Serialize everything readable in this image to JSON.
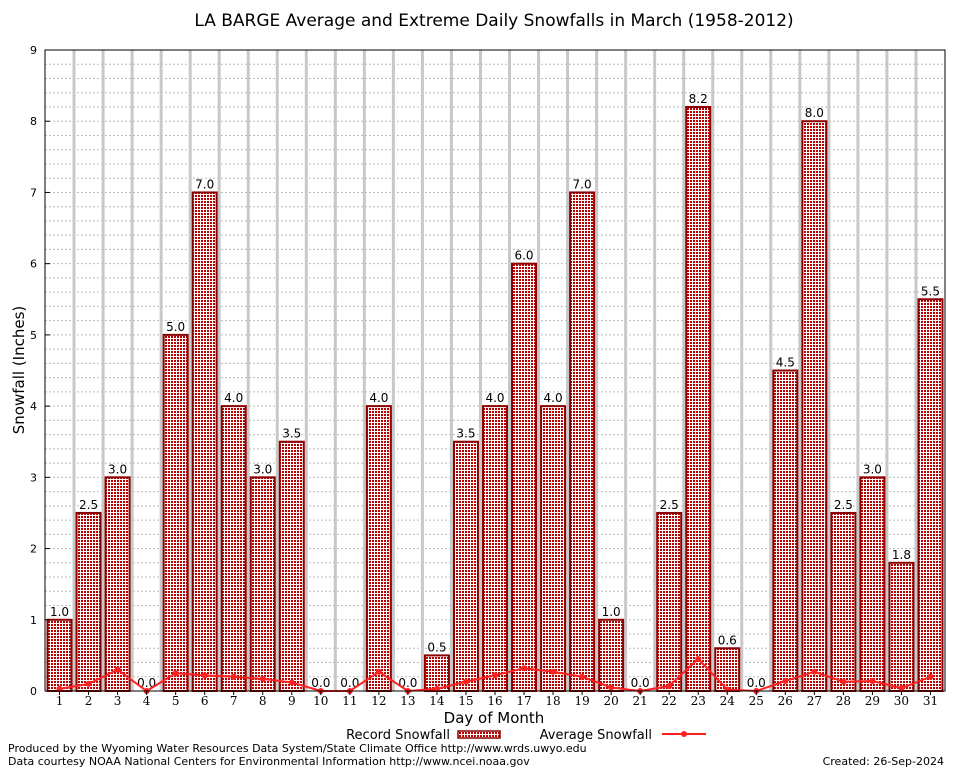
{
  "chart_data": {
    "type": "bar",
    "title": "LA BARGE Average and Extreme Daily Snowfalls in March (1958-2012)",
    "xlabel": "Day of Month",
    "ylabel": "Snowfall (Inches)",
    "ylim": [
      0,
      9
    ],
    "yticks": [
      "0",
      "1",
      "2",
      "3",
      "4",
      "5",
      "6",
      "7",
      "8",
      "9"
    ],
    "categories": [
      "1",
      "2",
      "3",
      "4",
      "5",
      "6",
      "7",
      "8",
      "9",
      "10",
      "11",
      "12",
      "13",
      "14",
      "15",
      "16",
      "17",
      "18",
      "19",
      "20",
      "21",
      "22",
      "23",
      "24",
      "25",
      "26",
      "27",
      "28",
      "29",
      "30",
      "31"
    ],
    "grid": true,
    "legend_position": "bottom",
    "series": [
      {
        "name": "Record Snowfall",
        "type": "bar",
        "color": "#cc0000",
        "values": [
          1.0,
          2.5,
          3.0,
          0.0,
          5.0,
          7.0,
          4.0,
          3.0,
          3.5,
          0.0,
          0.0,
          4.0,
          0.0,
          0.5,
          3.5,
          4.0,
          6.0,
          4.0,
          7.0,
          1.0,
          0.0,
          2.5,
          8.2,
          0.6,
          0.0,
          4.5,
          8.0,
          2.5,
          3.0,
          1.8,
          5.5
        ],
        "labels": [
          "1.0",
          "2.5",
          "3.0",
          "0.0",
          "5.0",
          "7.0",
          "4.0",
          "3.0",
          "3.5",
          "0.0",
          "0.0",
          "4.0",
          "0.0",
          "0.5",
          "3.5",
          "4.0",
          "6.0",
          "4.0",
          "7.0",
          "1.0",
          "0.0",
          "2.5",
          "8.2",
          "0.6",
          "0.0",
          "4.5",
          "8.0",
          "2.5",
          "3.0",
          "1.8",
          "5.5"
        ]
      },
      {
        "name": "Average Snowfall",
        "type": "line",
        "color": "#ff2020",
        "values": [
          0.03,
          0.1,
          0.3,
          0.0,
          0.25,
          0.22,
          0.2,
          0.17,
          0.12,
          0.0,
          0.0,
          0.27,
          0.0,
          0.03,
          0.13,
          0.22,
          0.32,
          0.27,
          0.2,
          0.05,
          0.0,
          0.07,
          0.45,
          0.02,
          0.0,
          0.14,
          0.27,
          0.13,
          0.14,
          0.04,
          0.2
        ]
      }
    ]
  },
  "footer": {
    "produced": "Produced by the Wyoming Water Resources Data System/State Climate Office http://www.wrds.uwyo.edu",
    "courtesy": "Data courtesy NOAA National Centers for Environmental Information http://www.ncei.noaa.gov",
    "created": "Created: 26-Sep-2024"
  }
}
